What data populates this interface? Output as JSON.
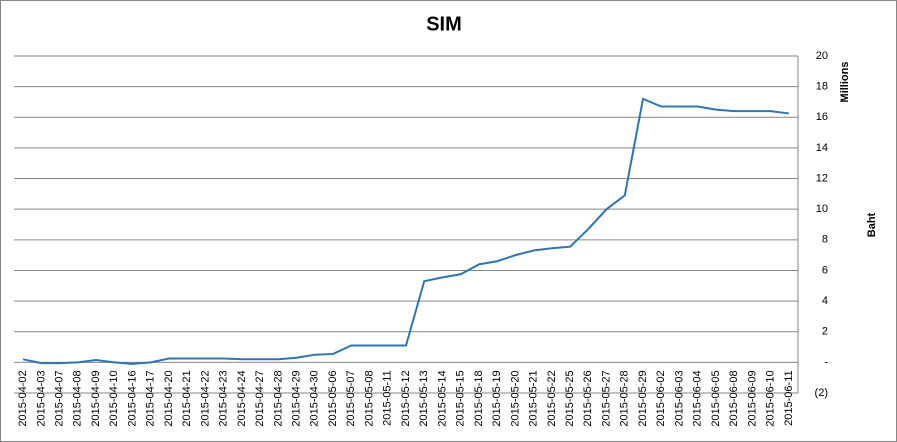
{
  "chart_data": {
    "type": "line",
    "title": "SIM",
    "y_axis_label": "Baht",
    "y_units_label": "Millions",
    "y_axis_side": "right",
    "grid": true,
    "color": "#2e75b6",
    "categories": [
      "2015-04-02",
      "2015-04-03",
      "2015-04-07",
      "2015-04-08",
      "2015-04-09",
      "2015-04-10",
      "2015-04-16",
      "2015-04-17",
      "2015-04-20",
      "2015-04-21",
      "2015-04-22",
      "2015-04-23",
      "2015-04-24",
      "2015-04-27",
      "2015-04-28",
      "2015-04-29",
      "2015-04-30",
      "2015-05-06",
      "2015-05-07",
      "2015-05-08",
      "2015-05-11",
      "2015-05-12",
      "2015-05-13",
      "2015-05-14",
      "2015-05-15",
      "2015-05-18",
      "2015-05-19",
      "2015-05-20",
      "2015-05-21",
      "2015-05-22",
      "2015-05-25",
      "2015-05-26",
      "2015-05-27",
      "2015-05-28",
      "2015-05-29",
      "2015-06-02",
      "2015-06-03",
      "2015-06-04",
      "2015-06-05",
      "2015-06-08",
      "2015-06-09",
      "2015-06-10",
      "2015-06-11"
    ],
    "values": [
      0.2,
      -0.05,
      -0.05,
      0.0,
      0.15,
      0.0,
      -0.1,
      0.0,
      0.25,
      0.25,
      0.25,
      0.25,
      0.2,
      0.2,
      0.2,
      0.3,
      0.5,
      0.55,
      1.1,
      1.1,
      1.1,
      1.1,
      5.3,
      5.55,
      5.75,
      6.4,
      6.6,
      7.0,
      7.3,
      7.45,
      7.55,
      8.7,
      10.0,
      10.9,
      17.2,
      16.7,
      16.7,
      16.7,
      16.5,
      16.4,
      16.4,
      16.4,
      16.25
    ],
    "ylim": [
      -2,
      20
    ],
    "yticks": [
      {
        "value": -2,
        "label": "(2)"
      },
      {
        "value": 0,
        "label": "-"
      },
      2,
      4,
      6,
      8,
      10,
      12,
      14,
      16,
      18,
      20
    ]
  }
}
